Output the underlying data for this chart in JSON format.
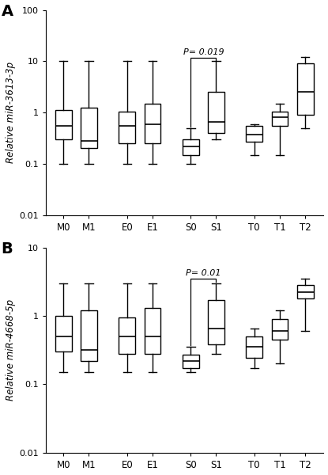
{
  "panel_A": {
    "label": "A",
    "ylabel": "Relative miR-3613-3p",
    "ylim": [
      0.01,
      100
    ],
    "yticks": [
      0.01,
      0.1,
      1,
      10,
      100
    ],
    "yticklabels": [
      "0.01",
      "0.1",
      "1",
      "10",
      "100"
    ],
    "pvalue_text": "P= 0.019",
    "pvalue_groups": [
      4,
      5
    ],
    "groups": [
      "M0",
      "M1",
      "E0",
      "E1",
      "S0",
      "S1",
      "T0",
      "T1",
      "T2"
    ],
    "boxes": [
      {
        "whislo": 0.1,
        "q1": 0.3,
        "med": 0.55,
        "q3": 1.1,
        "whishi": 10.0
      },
      {
        "whislo": 0.1,
        "q1": 0.2,
        "med": 0.28,
        "q3": 1.25,
        "whishi": 10.0
      },
      {
        "whislo": 0.1,
        "q1": 0.25,
        "med": 0.55,
        "q3": 1.05,
        "whishi": 10.0
      },
      {
        "whislo": 0.1,
        "q1": 0.25,
        "med": 0.6,
        "q3": 1.5,
        "whishi": 10.0
      },
      {
        "whislo": 0.1,
        "q1": 0.15,
        "med": 0.22,
        "q3": 0.3,
        "whishi": 0.5
      },
      {
        "whislo": 0.3,
        "q1": 0.4,
        "med": 0.65,
        "q3": 2.5,
        "whishi": 10.0
      },
      {
        "whislo": 0.15,
        "q1": 0.27,
        "med": 0.37,
        "q3": 0.55,
        "whishi": 0.6
      },
      {
        "whislo": 0.15,
        "q1": 0.55,
        "med": 0.8,
        "q3": 1.05,
        "whishi": 1.5
      },
      {
        "whislo": 0.5,
        "q1": 0.9,
        "med": 2.5,
        "q3": 9.0,
        "whishi": 12.0
      }
    ]
  },
  "panel_B": {
    "label": "B",
    "ylabel": "Relative miR-4668-5p",
    "ylim": [
      0.01,
      10
    ],
    "yticks": [
      0.01,
      0.1,
      1,
      10
    ],
    "yticklabels": [
      "0.01",
      "0.1",
      "1",
      "10"
    ],
    "pvalue_text": "P= 0.01",
    "pvalue_groups": [
      4,
      5
    ],
    "groups": [
      "M0",
      "M1",
      "E0",
      "E1",
      "S0",
      "S1",
      "T0",
      "T1",
      "T2"
    ],
    "boxes": [
      {
        "whislo": 0.15,
        "q1": 0.3,
        "med": 0.5,
        "q3": 1.0,
        "whishi": 3.0
      },
      {
        "whislo": 0.15,
        "q1": 0.22,
        "med": 0.32,
        "q3": 1.2,
        "whishi": 3.0
      },
      {
        "whislo": 0.15,
        "q1": 0.28,
        "med": 0.5,
        "q3": 0.95,
        "whishi": 3.0
      },
      {
        "whislo": 0.15,
        "q1": 0.28,
        "med": 0.5,
        "q3": 1.3,
        "whishi": 3.0
      },
      {
        "whislo": 0.15,
        "q1": 0.17,
        "med": 0.22,
        "q3": 0.27,
        "whishi": 0.35
      },
      {
        "whislo": 0.28,
        "q1": 0.38,
        "med": 0.65,
        "q3": 1.7,
        "whishi": 3.0
      },
      {
        "whislo": 0.17,
        "q1": 0.24,
        "med": 0.35,
        "q3": 0.5,
        "whishi": 0.65
      },
      {
        "whislo": 0.2,
        "q1": 0.45,
        "med": 0.6,
        "q3": 0.9,
        "whishi": 1.2
      },
      {
        "whislo": 0.6,
        "q1": 1.8,
        "med": 2.2,
        "q3": 2.8,
        "whishi": 3.5
      }
    ]
  },
  "group_positions": [
    1,
    2,
    3.5,
    4.5,
    6,
    7,
    8.5,
    9.5,
    10.5
  ],
  "box_width": 0.65,
  "figsize": [
    4.15,
    6.0
  ],
  "dpi": 100,
  "background_color": "#ffffff",
  "box_facecolor": "#ffffff",
  "box_edgecolor": "#000000",
  "median_color": "#000000",
  "whisker_color": "#000000",
  "cap_color": "#000000"
}
